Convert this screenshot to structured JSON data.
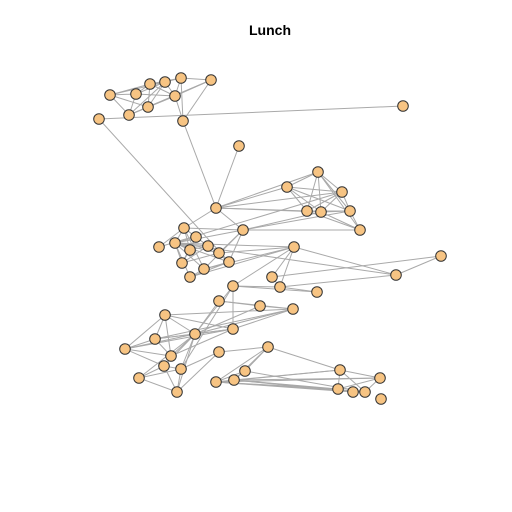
{
  "title": "Lunch",
  "style": {
    "background": "#ffffff",
    "edge_color": "#a9a9a9",
    "node_fill": "#f7c483",
    "node_stroke": "#333333"
  },
  "graph": {
    "type": "undirected-network",
    "node_count": 64,
    "nodes": [
      {
        "id": "n0"
      },
      {
        "id": "n1"
      },
      {
        "id": "n2"
      },
      {
        "id": "n3"
      },
      {
        "id": "n4"
      },
      {
        "id": "n5"
      },
      {
        "id": "n6"
      },
      {
        "id": "n7"
      },
      {
        "id": "n8"
      },
      {
        "id": "n9"
      },
      {
        "id": "n10"
      },
      {
        "id": "n11"
      },
      {
        "id": "n12"
      },
      {
        "id": "n13"
      },
      {
        "id": "n14"
      },
      {
        "id": "n15"
      },
      {
        "id": "n16"
      },
      {
        "id": "n17"
      },
      {
        "id": "n18"
      },
      {
        "id": "n19"
      },
      {
        "id": "n20"
      },
      {
        "id": "n21"
      },
      {
        "id": "n22"
      },
      {
        "id": "n23"
      },
      {
        "id": "n24"
      },
      {
        "id": "n25"
      },
      {
        "id": "n26"
      },
      {
        "id": "n27"
      },
      {
        "id": "n28"
      },
      {
        "id": "n29"
      },
      {
        "id": "n30"
      },
      {
        "id": "n31"
      },
      {
        "id": "n32"
      },
      {
        "id": "n33"
      },
      {
        "id": "n34"
      },
      {
        "id": "n35"
      },
      {
        "id": "n36"
      },
      {
        "id": "n37"
      },
      {
        "id": "n38"
      },
      {
        "id": "n39"
      },
      {
        "id": "n40"
      },
      {
        "id": "n41"
      },
      {
        "id": "n42"
      },
      {
        "id": "n43"
      },
      {
        "id": "n44"
      },
      {
        "id": "n45"
      },
      {
        "id": "n46"
      },
      {
        "id": "n47"
      },
      {
        "id": "n48"
      },
      {
        "id": "n49"
      },
      {
        "id": "n50"
      },
      {
        "id": "n51"
      },
      {
        "id": "n52"
      },
      {
        "id": "n53"
      },
      {
        "id": "n54"
      },
      {
        "id": "n55"
      },
      {
        "id": "n56"
      },
      {
        "id": "n57"
      },
      {
        "id": "n58"
      },
      {
        "id": "n59"
      },
      {
        "id": "n60"
      },
      {
        "id": "n61"
      },
      {
        "id": "n62"
      },
      {
        "id": "n63"
      }
    ],
    "edges": [
      [
        "n0",
        "n1"
      ],
      [
        "n0",
        "n2"
      ],
      [
        "n0",
        "n3"
      ],
      [
        "n0",
        "n5"
      ],
      [
        "n0",
        "n7"
      ],
      [
        "n1",
        "n2"
      ],
      [
        "n1",
        "n3"
      ],
      [
        "n1",
        "n5"
      ],
      [
        "n1",
        "n8"
      ],
      [
        "n2",
        "n3"
      ],
      [
        "n2",
        "n4"
      ],
      [
        "n2",
        "n7"
      ],
      [
        "n2",
        "n8"
      ],
      [
        "n3",
        "n4"
      ],
      [
        "n3",
        "n5"
      ],
      [
        "n3",
        "n7"
      ],
      [
        "n3",
        "n8"
      ],
      [
        "n4",
        "n6"
      ],
      [
        "n4",
        "n8"
      ],
      [
        "n4",
        "n9"
      ],
      [
        "n5",
        "n6"
      ],
      [
        "n5",
        "n7"
      ],
      [
        "n5",
        "n8"
      ],
      [
        "n6",
        "n7"
      ],
      [
        "n6",
        "n8"
      ],
      [
        "n6",
        "n9"
      ],
      [
        "n7",
        "n8"
      ],
      [
        "n8",
        "n9"
      ],
      [
        "n9",
        "n14"
      ],
      [
        "n12",
        "n14"
      ],
      [
        "n13",
        "n14"
      ],
      [
        "n13",
        "n15"
      ],
      [
        "n13",
        "n16"
      ],
      [
        "n13",
        "n17"
      ],
      [
        "n13",
        "n18"
      ],
      [
        "n13",
        "n19"
      ],
      [
        "n14",
        "n15"
      ],
      [
        "n14",
        "n16"
      ],
      [
        "n14",
        "n17"
      ],
      [
        "n14",
        "n21"
      ],
      [
        "n14",
        "n23"
      ],
      [
        "n15",
        "n16"
      ],
      [
        "n15",
        "n17"
      ],
      [
        "n15",
        "n18"
      ],
      [
        "n15",
        "n19"
      ],
      [
        "n15",
        "n20"
      ],
      [
        "n16",
        "n17"
      ],
      [
        "n16",
        "n18"
      ],
      [
        "n16",
        "n19"
      ],
      [
        "n16",
        "n22"
      ],
      [
        "n17",
        "n18"
      ],
      [
        "n17",
        "n19"
      ],
      [
        "n17",
        "n20"
      ],
      [
        "n18",
        "n19"
      ],
      [
        "n18",
        "n20"
      ],
      [
        "n18",
        "n21"
      ],
      [
        "n19",
        "n20"
      ],
      [
        "n19",
        "n21"
      ],
      [
        "n20",
        "n21"
      ],
      [
        "n21",
        "n23"
      ],
      [
        "n21",
        "n24"
      ],
      [
        "n21",
        "n28"
      ],
      [
        "n22",
        "n23"
      ],
      [
        "n23",
        "n24"
      ],
      [
        "n23",
        "n25"
      ],
      [
        "n23",
        "n26"
      ],
      [
        "n23",
        "n30"
      ],
      [
        "n23",
        "n31"
      ],
      [
        "n24",
        "n25"
      ],
      [
        "n24",
        "n26"
      ],
      [
        "n24",
        "n27"
      ],
      [
        "n24",
        "n28"
      ],
      [
        "n24",
        "n29"
      ],
      [
        "n24",
        "n30"
      ],
      [
        "n24",
        "n31"
      ],
      [
        "n24",
        "n32"
      ],
      [
        "n24",
        "n33"
      ],
      [
        "n24",
        "n34"
      ],
      [
        "n25",
        "n26"
      ],
      [
        "n25",
        "n27"
      ],
      [
        "n25",
        "n29"
      ],
      [
        "n26",
        "n27"
      ],
      [
        "n26",
        "n29"
      ],
      [
        "n27",
        "n29"
      ],
      [
        "n28",
        "n29"
      ],
      [
        "n30",
        "n31"
      ],
      [
        "n30",
        "n32"
      ],
      [
        "n31",
        "n32"
      ],
      [
        "n31",
        "n33"
      ],
      [
        "n32",
        "n33"
      ],
      [
        "n33",
        "n34"
      ],
      [
        "n33",
        "n36"
      ],
      [
        "n34",
        "n35"
      ],
      [
        "n35",
        "n36"
      ],
      [
        "n33",
        "n37"
      ],
      [
        "n33",
        "n42"
      ],
      [
        "n37",
        "n38"
      ],
      [
        "n37",
        "n42"
      ],
      [
        "n38",
        "n42"
      ],
      [
        "n39",
        "n40"
      ],
      [
        "n39",
        "n41"
      ],
      [
        "n39",
        "n43"
      ],
      [
        "n40",
        "n41"
      ],
      [
        "n40",
        "n43"
      ],
      [
        "n41",
        "n43"
      ],
      [
        "n41",
        "n44"
      ],
      [
        "n41",
        "n46"
      ],
      [
        "n41",
        "n45"
      ],
      [
        "n42",
        "n43"
      ],
      [
        "n42",
        "n44"
      ],
      [
        "n42",
        "n51"
      ],
      [
        "n43",
        "n44"
      ],
      [
        "n43",
        "n45"
      ],
      [
        "n43",
        "n46"
      ],
      [
        "n43",
        "n47"
      ],
      [
        "n43",
        "n48"
      ],
      [
        "n43",
        "n49"
      ],
      [
        "n43",
        "n50"
      ],
      [
        "n43",
        "n51"
      ],
      [
        "n43",
        "n52"
      ],
      [
        "n44",
        "n45"
      ],
      [
        "n44",
        "n46"
      ],
      [
        "n44",
        "n47"
      ],
      [
        "n44",
        "n48"
      ],
      [
        "n45",
        "n46"
      ],
      [
        "n45",
        "n47"
      ],
      [
        "n45",
        "n48"
      ],
      [
        "n46",
        "n47"
      ],
      [
        "n46",
        "n48"
      ],
      [
        "n47",
        "n48"
      ],
      [
        "n47",
        "n49"
      ],
      [
        "n49",
        "n50"
      ],
      [
        "n49",
        "n51"
      ],
      [
        "n49",
        "n52"
      ],
      [
        "n50",
        "n51"
      ],
      [
        "n50",
        "n52"
      ],
      [
        "n51",
        "n52"
      ],
      [
        "n51",
        "n53"
      ],
      [
        "n52",
        "n53"
      ],
      [
        "n53",
        "n54"
      ],
      [
        "n54",
        "n55"
      ],
      [
        "n54",
        "n56"
      ],
      [
        "n54",
        "n57"
      ],
      [
        "n54",
        "n58"
      ],
      [
        "n55",
        "n56"
      ],
      [
        "n55",
        "n57"
      ],
      [
        "n55",
        "n59"
      ],
      [
        "n56",
        "n57"
      ],
      [
        "n56",
        "n58"
      ],
      [
        "n56",
        "n59"
      ],
      [
        "n56",
        "n60"
      ],
      [
        "n56",
        "n61"
      ],
      [
        "n56",
        "n62"
      ],
      [
        "n57",
        "n58"
      ],
      [
        "n57",
        "n59"
      ],
      [
        "n57",
        "n60"
      ],
      [
        "n57",
        "n61"
      ],
      [
        "n57",
        "n62"
      ],
      [
        "n58",
        "n59"
      ],
      [
        "n58",
        "n60"
      ],
      [
        "n58",
        "n61"
      ],
      [
        "n59",
        "n60"
      ],
      [
        "n59",
        "n62"
      ],
      [
        "n60",
        "n61"
      ],
      [
        "n61",
        "n62"
      ],
      [
        "n10",
        "n11"
      ],
      [
        "n14",
        "n18"
      ],
      [
        "n21",
        "n31"
      ],
      [
        "n30",
        "n10"
      ],
      [
        "n21",
        "n30"
      ],
      [
        "n28",
        "n33"
      ],
      [
        "n36",
        "n37"
      ],
      [
        "n34",
        "n37"
      ]
    ]
  }
}
